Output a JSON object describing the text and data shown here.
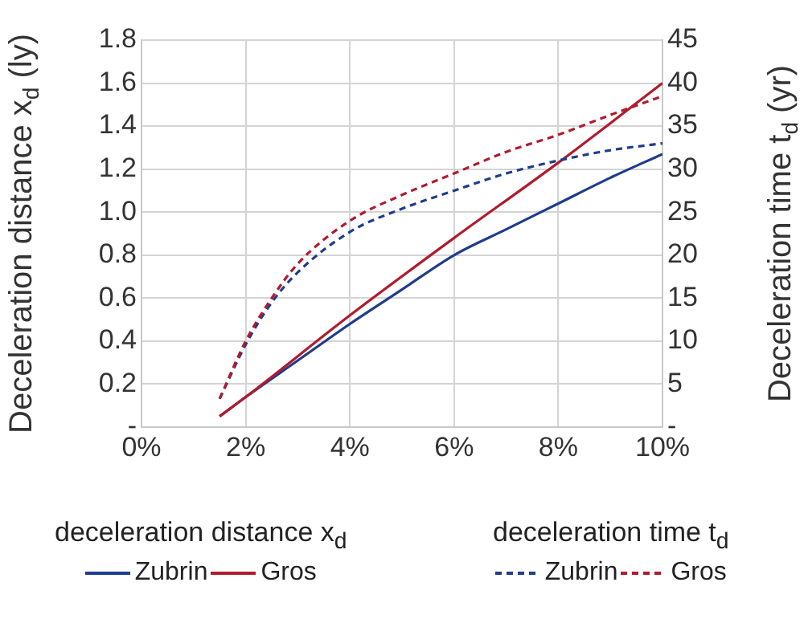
{
  "chart_data": {
    "type": "line",
    "ylabel": "Deceleration distance x$_{d}$ (ly)",
    "y2label": "Deceleration time t$_{d}$ (yr)",
    "xlim": [
      0,
      10
    ],
    "xticks": [
      {
        "value": 0,
        "label": "0%"
      },
      {
        "value": 2,
        "label": "2%"
      },
      {
        "value": 4,
        "label": "4%"
      },
      {
        "value": 6,
        "label": "6%"
      },
      {
        "value": 8,
        "label": "8%"
      },
      {
        "value": 10,
        "label": "10%"
      }
    ],
    "ylim": [
      0,
      1.8
    ],
    "yticks": [
      {
        "value": 0,
        "label": "-"
      },
      0.2,
      0.4,
      0.6,
      0.8,
      {
        "value": 1,
        "label": "1.0"
      },
      1.2,
      1.4,
      1.6,
      1.8
    ],
    "y2lim": [
      0,
      45
    ],
    "y2ticks": [
      {
        "value": 0,
        "label": "-"
      },
      5,
      10,
      15,
      20,
      25,
      30,
      35,
      40,
      45
    ],
    "grid": true,
    "legend": "bottom",
    "marker": "none",
    "annotations": [
      "deceleration distance x$_{d}$",
      "deceleration time t$_{d}$"
    ],
    "series": [
      {
        "name": "Zubrin",
        "color": "#1f3d8c",
        "line_style": "solid",
        "x": [
          1.5,
          2,
          3,
          4,
          5,
          6,
          7,
          8,
          9,
          10
        ],
        "values": [
          0.05,
          0.14,
          0.31,
          0.48,
          0.64,
          0.8,
          0.92,
          1.04,
          1.16,
          1.27
        ]
      },
      {
        "name": "Gros",
        "color": "#b01c2e",
        "line_style": "solid",
        "x": [
          1.5,
          2,
          4,
          6,
          8,
          10
        ],
        "values": [
          0.05,
          0.14,
          0.52,
          0.88,
          1.23,
          1.6
        ]
      },
      {
        "name": "Zubrin",
        "color": "#1f3d8c",
        "line_style": "dashed",
        "axis": "y2",
        "x": [
          1.5,
          2,
          2.5,
          3,
          4,
          5,
          6,
          7,
          8,
          9,
          10
        ],
        "values": [
          3.3,
          9.6,
          14.5,
          18,
          22.7,
          25.4,
          27.5,
          29.5,
          31,
          32.2,
          33
        ]
      },
      {
        "name": "Gros",
        "color": "#b01c2e",
        "line_style": "dashed",
        "axis": "y2",
        "x": [
          1.5,
          2,
          2.5,
          3,
          4,
          5,
          6,
          7,
          8,
          9,
          10
        ],
        "values": [
          3.3,
          10,
          15,
          19,
          24,
          27,
          29.5,
          32,
          34,
          36.3,
          38.5
        ]
      }
    ]
  }
}
